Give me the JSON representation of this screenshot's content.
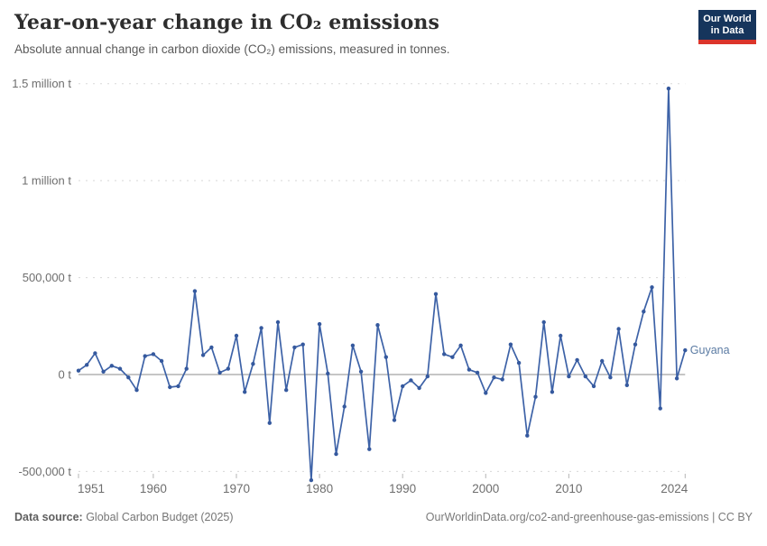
{
  "header": {
    "title": "Year-on-year change in CO₂ emissions",
    "subtitle": "Absolute annual change in carbon dioxide (CO₂) emissions, measured in tonnes."
  },
  "logo": {
    "line1": "Our World",
    "line2": "in Data"
  },
  "chart_data": {
    "type": "line",
    "title": "Year-on-year change in CO₂ emissions",
    "unit": "t",
    "entity": "Guyana",
    "x": [
      1951,
      1952,
      1953,
      1954,
      1955,
      1956,
      1957,
      1958,
      1959,
      1960,
      1961,
      1962,
      1963,
      1964,
      1965,
      1966,
      1967,
      1968,
      1969,
      1970,
      1971,
      1972,
      1973,
      1974,
      1975,
      1976,
      1977,
      1978,
      1979,
      1980,
      1981,
      1982,
      1983,
      1984,
      1985,
      1986,
      1987,
      1988,
      1989,
      1990,
      1991,
      1992,
      1993,
      1994,
      1995,
      1996,
      1997,
      1998,
      1999,
      2000,
      2001,
      2002,
      2003,
      2004,
      2005,
      2006,
      2007,
      2008,
      2009,
      2010,
      2011,
      2012,
      2013,
      2014,
      2015,
      2016,
      2017,
      2018,
      2019,
      2020,
      2021,
      2022,
      2023,
      2024
    ],
    "series": [
      {
        "name": "Guyana",
        "values": [
          20000,
          50000,
          110000,
          15000,
          45000,
          30000,
          -15000,
          -80000,
          95000,
          105000,
          70000,
          -65000,
          -60000,
          30000,
          430000,
          100000,
          140000,
          10000,
          30000,
          200000,
          -90000,
          55000,
          240000,
          -250000,
          270000,
          -80000,
          140000,
          155000,
          -545000,
          260000,
          5000,
          -410000,
          -165000,
          150000,
          15000,
          -385000,
          255000,
          90000,
          -235000,
          -60000,
          -30000,
          -70000,
          -10000,
          415000,
          105000,
          90000,
          150000,
          25000,
          10000,
          -95000,
          -15000,
          -25000,
          155000,
          60000,
          -315000,
          -115000,
          270000,
          -90000,
          200000,
          -10000,
          75000,
          -10000,
          -60000,
          70000,
          -15000,
          235000,
          -55000,
          155000,
          325000,
          450000,
          -175000,
          1475000,
          -20000,
          125000
        ]
      }
    ],
    "xlabel": "",
    "ylabel": "",
    "ylim": [
      -550000,
      1500000
    ],
    "x_ticks": [
      1951,
      1960,
      1970,
      1980,
      1990,
      2000,
      2010,
      2024
    ],
    "y_ticks": [
      {
        "value": 1500000,
        "label": "1.5 million t"
      },
      {
        "value": 1000000,
        "label": "1 million t"
      },
      {
        "value": 500000,
        "label": "500,000 t"
      },
      {
        "value": 0,
        "label": "0 t"
      },
      {
        "value": -500000,
        "label": "-500,000 t"
      }
    ],
    "grid": true,
    "legend_position": "end-of-line-label",
    "colors": {
      "line": "#3d62a7",
      "marker": "#35599e",
      "entity_label": "#5b7ba3",
      "gridline": "#d8d8d8",
      "zero_line": "#8e8e8e",
      "tick": "#b5b5b5",
      "axis_text": "#6e6e6e"
    }
  },
  "footer": {
    "source_label": "Data source:",
    "source_value": " Global Carbon Budget (2025)",
    "link_text": "OurWorldinData.org/co2-and-greenhouse-gas-emissions | CC BY"
  }
}
